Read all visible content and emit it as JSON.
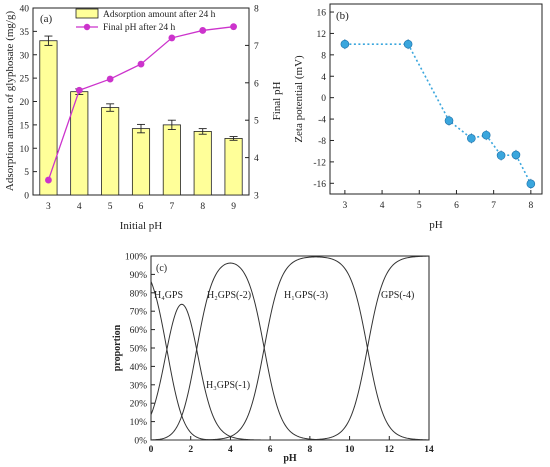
{
  "chart_data": [
    {
      "panel": "(a)",
      "type": "bar",
      "categories": [
        "3",
        "4",
        "5",
        "6",
        "7",
        "8",
        "9"
      ],
      "series": [
        {
          "name": "Adsorption amount after 24 h",
          "kind": "bar",
          "axis": "left",
          "values": [
            33.0,
            22.1,
            18.7,
            14.2,
            15.0,
            13.6,
            12.1
          ],
          "errors": [
            1.0,
            0.6,
            0.8,
            0.9,
            1.0,
            0.6,
            0.4
          ],
          "color": "#ffff99"
        },
        {
          "name": "Final pH after 24 h",
          "kind": "line",
          "axis": "right",
          "values": [
            3.4,
            5.8,
            6.1,
            6.5,
            7.2,
            7.4,
            7.5
          ],
          "color": "#cc33cc"
        }
      ],
      "xlabel": "Initial pH",
      "ylabel": "Adsorption amount of glyphosate (mg/g)",
      "y2label": "Final pH",
      "ylim": [
        0,
        40
      ],
      "yticks": [
        "0",
        "5",
        "10",
        "15",
        "20",
        "25",
        "30",
        "35",
        "40"
      ],
      "y2lim": [
        3,
        8
      ],
      "y2ticks": [
        "3",
        "4",
        "5",
        "6",
        "7",
        "8"
      ],
      "legend_position": "top"
    },
    {
      "panel": "(b)",
      "type": "scatter",
      "x": [
        3.0,
        4.7,
        5.8,
        6.4,
        6.8,
        7.2,
        7.6,
        8.0
      ],
      "series": [
        {
          "values": [
            10.0,
            10.0,
            -4.3,
            -7.6,
            -7.0,
            -10.8,
            -10.7,
            -16.1
          ],
          "color": "#3aa6dd"
        }
      ],
      "xlabel": "pH",
      "ylabel": "Zeta potential (mV)",
      "xlim": [
        2.6,
        8.3
      ],
      "xticks": [
        "3",
        "4",
        "5",
        "6",
        "7",
        "8"
      ],
      "ylim": [
        -18,
        17.5
      ],
      "yticks": [
        "-16",
        "-12",
        "-8",
        "-4",
        "0",
        "4",
        "8",
        "12",
        "16"
      ]
    },
    {
      "panel": "(c)",
      "type": "line",
      "pKa": [
        0.8,
        2.3,
        5.7,
        10.9
      ],
      "species": [
        "H₄GPS",
        "H₃GPS(-1)",
        "H₂GPS(-2)",
        "H₁GPS(-3)",
        "GPS(-4)"
      ],
      "xlabel": "pH",
      "ylabel": "proportion",
      "xlim": [
        0,
        14
      ],
      "xticks": [
        "0",
        "2",
        "4",
        "6",
        "8",
        "10",
        "12",
        "14"
      ],
      "ylim": [
        0,
        100
      ],
      "yticks": [
        "0%",
        "10%",
        "20%",
        "30%",
        "40%",
        "50%",
        "60%",
        "70%",
        "80%",
        "90%",
        "100%"
      ]
    }
  ]
}
